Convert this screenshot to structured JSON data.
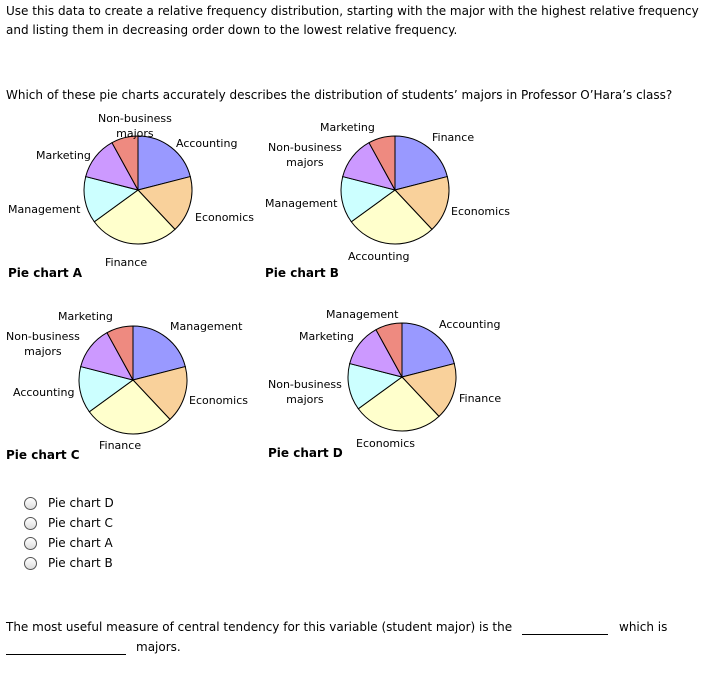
{
  "intro": "Use this data to create a relative frequency distribution, starting with the major with the highest relative frequency",
  "intro2": "and listing them in decreasing order down to the lowest relative frequency.",
  "question": "Which of these pie charts accurately describes the distribution of students’ majors in Professor O’Hara’s class?",
  "slice_colors": [
    "#9999ff",
    "#f9d19b",
    "#ffffcc",
    "#ccffff",
    "#cc99ff",
    "#ee8a80"
  ],
  "chart_data": {
    "type": "pie",
    "slice_percent": [
      21,
      17,
      27,
      14,
      13,
      8
    ],
    "charts": [
      {
        "title": "Pie chart A",
        "labels": [
          "Accounting",
          "Economics",
          "Finance",
          "Management",
          "Marketing",
          "Non-business majors"
        ]
      },
      {
        "title": "Pie chart B",
        "labels": [
          "Finance",
          "Economics",
          "Accounting",
          "Management",
          "Non-business majors",
          "Marketing"
        ]
      },
      {
        "title": "Pie chart C",
        "labels": [
          "Management",
          "Economics",
          "Finance",
          "Accounting",
          "Non-business majors",
          "Marketing"
        ]
      },
      {
        "title": "Pie chart D",
        "labels": [
          "Accounting",
          "Finance",
          "Economics",
          "Non-business majors",
          "Marketing",
          "Management"
        ]
      }
    ]
  },
  "options": [
    "Pie chart D",
    "Pie chart C",
    "Pie chart A",
    "Pie chart B"
  ],
  "fill_in": {
    "part1": "The most useful measure of central tendency for this variable (student major) is the",
    "part2": "which is",
    "part3": "majors."
  }
}
